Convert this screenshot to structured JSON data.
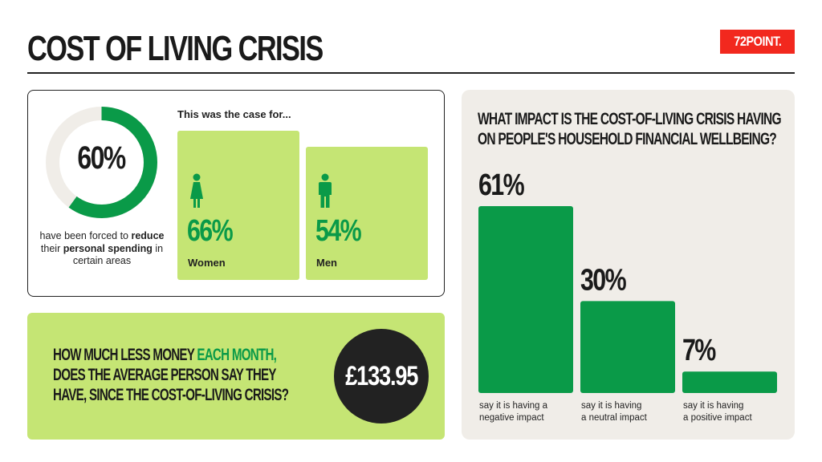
{
  "title": "COST OF LIVING CRISIS",
  "brand": "72POINT.",
  "colors": {
    "green": "#0a9a48",
    "light_green": "#c5e574",
    "red": "#f2281e",
    "dark": "#222222",
    "beige": "#f0ede8"
  },
  "spending": {
    "value": "60%",
    "fraction": 0.6,
    "caption_parts": [
      {
        "text": "have been forced to ",
        "bold": false
      },
      {
        "text": "reduce",
        "bold": true
      },
      {
        "text": " their ",
        "bold": false
      },
      {
        "text": "personal spending",
        "bold": true
      },
      {
        "text": " in certain areas",
        "bold": false
      }
    ],
    "case_label": "This was the case for...",
    "women": {
      "value": "66%",
      "label": "Women",
      "icon": "woman-icon"
    },
    "men": {
      "value": "54%",
      "label": "Men",
      "icon": "man-icon"
    }
  },
  "money": {
    "question_parts": [
      {
        "text": "HOW MUCH LESS MONEY ",
        "green": false
      },
      {
        "text": "EACH MONTH,",
        "green": true
      },
      {
        "text": "\nDOES THE AVERAGE PERSON SAY THEY\nHAVE, SINCE THE COST-OF-LIVING CRISIS?",
        "green": false
      }
    ],
    "value": "£133.95"
  },
  "chart_data": {
    "type": "bar",
    "title": "WHAT IMPACT IS THE COST-OF-LIVING CRISIS HAVING ON PEOPLE'S HOUSEHOLD FINANCIAL WELLBEING?",
    "title_lines": [
      "WHAT IMPACT IS THE COST-OF-LIVING CRISIS HAVING",
      "ON PEOPLE'S HOUSEHOLD FINANCIAL WELLBEING?"
    ],
    "categories": [
      [
        "say it is having a",
        "negative impact"
      ],
      [
        "say it is having",
        "a neutral impact"
      ],
      [
        "say it is having",
        "a positive impact"
      ]
    ],
    "values": [
      61,
      30,
      7
    ],
    "value_labels": [
      "61%",
      "30%",
      "7%"
    ],
    "ylim": [
      0,
      61
    ],
    "color": "#0a9a48",
    "grid": false
  }
}
